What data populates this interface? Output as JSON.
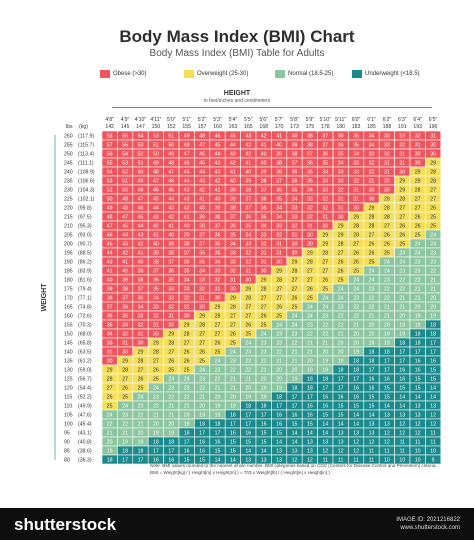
{
  "title": "Body Mass Index (BMI) Chart",
  "subtitle": "Body Mass Index (BMI) Table for Adults",
  "legend": [
    {
      "label": "Obese (>30)",
      "color": "#f0555e"
    },
    {
      "label": "Overweight (25-30)",
      "color": "#f4de5a"
    },
    {
      "label": "Normal (18.5-25)",
      "color": "#8cc6a0"
    },
    {
      "label": "Underweight (<18.5)",
      "color": "#1a8a8c"
    }
  ],
  "height_axis": {
    "label": "HEIGHT",
    "sublabel": "in feet/inches and centimeters"
  },
  "weight_axis": {
    "label": "WEIGHT"
  },
  "units_header": {
    "lbs": "lbs",
    "kg": "(kg)"
  },
  "note_label": "Note:",
  "note_text": "BMI values rounded to the nearest whole number. BMI categories based on CDC (Centers for Disease Control and Prevention) criteria.",
  "formula": "BMI = Weight[kg] / ( Height[m] x Height[m] ) = 703 x Weight[lb] / ( Height[in] x Height[in] )",
  "footer": {
    "brand": "shutterstock",
    "id_label": "IMAGE ID: 2021216822",
    "site": "www.shutterstock.com"
  },
  "chart_data": {
    "type": "heatmap",
    "heights": [
      {
        "ft": "4'8\"",
        "cm": "142",
        "inches": 56
      },
      {
        "ft": "4'9\"",
        "cm": "145",
        "inches": 57
      },
      {
        "ft": "4'10\"",
        "cm": "147",
        "inches": 58
      },
      {
        "ft": "4'11\"",
        "cm": "150",
        "inches": 59
      },
      {
        "ft": "5'0\"",
        "cm": "152",
        "inches": 60
      },
      {
        "ft": "5'1\"",
        "cm": "155",
        "inches": 61
      },
      {
        "ft": "5'2\"",
        "cm": "157",
        "inches": 62
      },
      {
        "ft": "5'3\"",
        "cm": "160",
        "inches": 63
      },
      {
        "ft": "5'4\"",
        "cm": "163",
        "inches": 64
      },
      {
        "ft": "5'5\"",
        "cm": "165",
        "inches": 65
      },
      {
        "ft": "5'6\"",
        "cm": "168",
        "inches": 66
      },
      {
        "ft": "5'7\"",
        "cm": "170",
        "inches": 67
      },
      {
        "ft": "5'8\"",
        "cm": "173",
        "inches": 68
      },
      {
        "ft": "5'9\"",
        "cm": "175",
        "inches": 69
      },
      {
        "ft": "5'10\"",
        "cm": "178",
        "inches": 70
      },
      {
        "ft": "5'11\"",
        "cm": "180",
        "inches": 71
      },
      {
        "ft": "6'0\"",
        "cm": "183",
        "inches": 72
      },
      {
        "ft": "6'1\"",
        "cm": "185",
        "inches": 73
      },
      {
        "ft": "6'2\"",
        "cm": "188",
        "inches": 74
      },
      {
        "ft": "6'3\"",
        "cm": "191",
        "inches": 75
      },
      {
        "ft": "6'4\"",
        "cm": "193",
        "inches": 76
      },
      {
        "ft": "6'5\"",
        "cm": "196",
        "inches": 77
      }
    ],
    "weights": [
      {
        "lbs": 260,
        "kg": "(117.9)"
      },
      {
        "lbs": 255,
        "kg": "(115.7)"
      },
      {
        "lbs": 250,
        "kg": "(113.4)"
      },
      {
        "lbs": 245,
        "kg": "(111.1)"
      },
      {
        "lbs": 240,
        "kg": "(108.9)"
      },
      {
        "lbs": 235,
        "kg": "(106.6)"
      },
      {
        "lbs": 230,
        "kg": "(104.3)"
      },
      {
        "lbs": 225,
        "kg": "(102.1)"
      },
      {
        "lbs": 220,
        "kg": "(99.8)"
      },
      {
        "lbs": 215,
        "kg": "(97.5)"
      },
      {
        "lbs": 210,
        "kg": "(95.3)"
      },
      {
        "lbs": 205,
        "kg": "(93.0)"
      },
      {
        "lbs": 200,
        "kg": "(90.7)"
      },
      {
        "lbs": 195,
        "kg": "(88.5)"
      },
      {
        "lbs": 190,
        "kg": "(86.2)"
      },
      {
        "lbs": 185,
        "kg": "(83.9)"
      },
      {
        "lbs": 180,
        "kg": "(81.6)"
      },
      {
        "lbs": 175,
        "kg": "(79.4)"
      },
      {
        "lbs": 170,
        "kg": "(77.1)"
      },
      {
        "lbs": 165,
        "kg": "(74.8)"
      },
      {
        "lbs": 160,
        "kg": "(72.6)"
      },
      {
        "lbs": 155,
        "kg": "(70.3)"
      },
      {
        "lbs": 150,
        "kg": "(68.0)"
      },
      {
        "lbs": 145,
        "kg": "(65.8)"
      },
      {
        "lbs": 140,
        "kg": "(63.5)"
      },
      {
        "lbs": 135,
        "kg": "(61.2)"
      },
      {
        "lbs": 130,
        "kg": "(59.0)"
      },
      {
        "lbs": 125,
        "kg": "(56.7)"
      },
      {
        "lbs": 120,
        "kg": "(54.4)"
      },
      {
        "lbs": 115,
        "kg": "(52.2)"
      },
      {
        "lbs": 110,
        "kg": "(49.9)"
      },
      {
        "lbs": 105,
        "kg": "(47.6)"
      },
      {
        "lbs": 100,
        "kg": "(45.4)"
      },
      {
        "lbs": 95,
        "kg": "(43.1)"
      },
      {
        "lbs": 90,
        "kg": "(40.8)"
      },
      {
        "lbs": 85,
        "kg": "(38.6)"
      },
      {
        "lbs": 80,
        "kg": "(36.3)"
      }
    ],
    "categories": [
      {
        "name": "Obese",
        "min": 30,
        "color": "#f0555e"
      },
      {
        "name": "Overweight",
        "min": 25,
        "color": "#f4de5a"
      },
      {
        "name": "Normal",
        "min": 18.5,
        "color": "#8cc6a0"
      },
      {
        "name": "Underweight",
        "min": 0,
        "color": "#1a8a8c"
      }
    ]
  }
}
